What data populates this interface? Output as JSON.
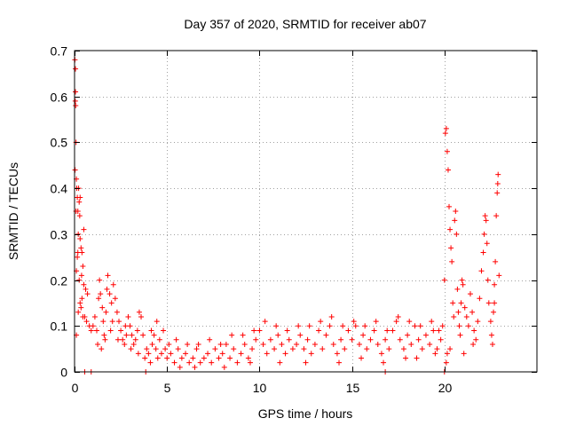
{
  "chart_data": {
    "type": "scatter",
    "title": "Day 357 of 2020, SRMTID for receiver ab07",
    "xlabel": "GPS time / hours",
    "ylabel": "SRMTID / TECUs",
    "xlim": [
      0,
      25
    ],
    "ylim": [
      0,
      0.7
    ],
    "xticks": [
      0,
      5,
      10,
      15,
      20
    ],
    "yticks": [
      0,
      0.1,
      0.2,
      0.3,
      0.4,
      0.5,
      0.6,
      0.7
    ],
    "xtick_labels": [
      "0",
      "5",
      "10",
      "15",
      "20"
    ],
    "ytick_labels": [
      "0",
      "0.1",
      "0.2",
      "0.3",
      "0.4",
      "0.5",
      "0.6",
      "0.7"
    ],
    "grid": true,
    "marker": "+",
    "color": "#ff0000",
    "series": [
      {
        "name": "SRMTID",
        "points": [
          [
            0.02,
            0.68
          ],
          [
            0.05,
            0.66
          ],
          [
            0.05,
            0.61
          ],
          [
            0.04,
            0.59
          ],
          [
            0.06,
            0.58
          ],
          [
            0.08,
            0.5
          ],
          [
            0.03,
            0.44
          ],
          [
            0.1,
            0.42
          ],
          [
            0.12,
            0.4
          ],
          [
            0.15,
            0.38
          ],
          [
            0.18,
            0.35
          ],
          [
            0.22,
            0.4
          ],
          [
            0.25,
            0.37
          ],
          [
            0.28,
            0.34
          ],
          [
            0.2,
            0.3
          ],
          [
            0.3,
            0.29
          ],
          [
            0.35,
            0.27
          ],
          [
            0.4,
            0.26
          ],
          [
            0.15,
            0.25
          ],
          [
            0.45,
            0.23
          ],
          [
            0.1,
            0.22
          ],
          [
            0.25,
            0.2
          ],
          [
            0.5,
            0.19
          ],
          [
            0.6,
            0.18
          ],
          [
            0.7,
            0.17
          ],
          [
            0.4,
            0.16
          ],
          [
            0.3,
            0.15
          ],
          [
            0.2,
            0.13
          ],
          [
            0.55,
            0.12
          ],
          [
            0.65,
            0.11
          ],
          [
            0.8,
            0.1
          ],
          [
            0.9,
            0.09
          ],
          [
            0.1,
            0.08
          ],
          [
            0.35,
            0.14
          ],
          [
            0.45,
            0.12
          ],
          [
            0.5,
            0.31
          ],
          [
            0.3,
            0.38
          ],
          [
            0.18,
            0.26
          ],
          [
            0.38,
            0.21
          ],
          [
            0.08,
            0.35
          ],
          [
            1.0,
            0.1
          ],
          [
            1.1,
            0.12
          ],
          [
            1.2,
            0.09
          ],
          [
            1.3,
            0.16
          ],
          [
            1.35,
            0.2
          ],
          [
            1.4,
            0.17
          ],
          [
            1.5,
            0.14
          ],
          [
            1.55,
            0.11
          ],
          [
            1.6,
            0.08
          ],
          [
            1.7,
            0.13
          ],
          [
            1.75,
            0.18
          ],
          [
            1.8,
            0.21
          ],
          [
            1.9,
            0.17
          ],
          [
            2.0,
            0.15
          ],
          [
            2.1,
            0.19
          ],
          [
            2.2,
            0.16
          ],
          [
            2.3,
            0.13
          ],
          [
            2.4,
            0.11
          ],
          [
            2.5,
            0.09
          ],
          [
            2.6,
            0.07
          ],
          [
            2.7,
            0.06
          ],
          [
            2.8,
            0.08
          ],
          [
            2.9,
            0.12
          ],
          [
            3.0,
            0.1
          ],
          [
            3.1,
            0.08
          ],
          [
            3.2,
            0.06
          ],
          [
            3.3,
            0.07
          ],
          [
            3.4,
            0.09
          ],
          [
            3.5,
            0.13
          ],
          [
            3.6,
            0.12
          ],
          [
            3.7,
            0.08
          ],
          [
            1.25,
            0.06
          ],
          [
            1.45,
            0.05
          ],
          [
            1.65,
            0.07
          ],
          [
            2.05,
            0.11
          ],
          [
            2.35,
            0.07
          ],
          [
            2.75,
            0.1
          ],
          [
            3.05,
            0.05
          ],
          [
            3.45,
            0.04
          ],
          [
            1.95,
            0.09
          ],
          [
            3.8,
            0.03
          ],
          [
            3.9,
            0.05
          ],
          [
            4.0,
            0.04
          ],
          [
            4.1,
            0.02
          ],
          [
            4.2,
            0.06
          ],
          [
            4.3,
            0.08
          ],
          [
            4.4,
            0.05
          ],
          [
            4.5,
            0.03
          ],
          [
            4.6,
            0.07
          ],
          [
            4.7,
            0.04
          ],
          [
            4.8,
            0.09
          ],
          [
            4.9,
            0.05
          ],
          [
            5.0,
            0.03
          ],
          [
            5.2,
            0.04
          ],
          [
            5.4,
            0.02
          ],
          [
            5.6,
            0.05
          ],
          [
            5.8,
            0.03
          ],
          [
            6.0,
            0.04
          ],
          [
            6.2,
            0.02
          ],
          [
            6.4,
            0.03
          ],
          [
            6.6,
            0.05
          ],
          [
            6.8,
            0.02
          ],
          [
            7.0,
            0.03
          ],
          [
            7.2,
            0.04
          ],
          [
            7.4,
            0.02
          ],
          [
            7.6,
            0.05
          ],
          [
            7.8,
            0.03
          ],
          [
            8.0,
            0.04
          ],
          [
            8.2,
            0.06
          ],
          [
            8.4,
            0.03
          ],
          [
            8.6,
            0.05
          ],
          [
            8.8,
            0.02
          ],
          [
            9.0,
            0.04
          ],
          [
            9.2,
            0.06
          ],
          [
            9.4,
            0.03
          ],
          [
            9.6,
            0.05
          ],
          [
            9.8,
            0.07
          ],
          [
            10.0,
            0.09
          ],
          [
            10.2,
            0.06
          ],
          [
            10.4,
            0.04
          ],
          [
            10.6,
            0.07
          ],
          [
            10.8,
            0.05
          ],
          [
            11.0,
            0.08
          ],
          [
            11.2,
            0.06
          ],
          [
            11.4,
            0.04
          ],
          [
            11.6,
            0.07
          ],
          [
            11.8,
            0.05
          ],
          [
            12.0,
            0.06
          ],
          [
            12.2,
            0.08
          ],
          [
            12.4,
            0.05
          ],
          [
            12.6,
            0.07
          ],
          [
            12.8,
            0.04
          ],
          [
            13.0,
            0.06
          ],
          [
            13.2,
            0.09
          ],
          [
            13.4,
            0.05
          ],
          [
            13.6,
            0.08
          ],
          [
            13.8,
            0.1
          ],
          [
            14.0,
            0.06
          ],
          [
            14.2,
            0.04
          ],
          [
            14.4,
            0.07
          ],
          [
            14.6,
            0.05
          ],
          [
            14.8,
            0.09
          ],
          [
            15.0,
            0.07
          ],
          [
            15.2,
            0.1
          ],
          [
            15.4,
            0.06
          ],
          [
            15.6,
            0.08
          ],
          [
            15.8,
            0.05
          ],
          [
            16.0,
            0.07
          ],
          [
            16.2,
            0.09
          ],
          [
            16.4,
            0.06
          ],
          [
            16.6,
            0.04
          ],
          [
            16.8,
            0.07
          ],
          [
            17.0,
            0.05
          ],
          [
            17.2,
            0.09
          ],
          [
            17.4,
            0.11
          ],
          [
            17.6,
            0.07
          ],
          [
            17.8,
            0.05
          ],
          [
            18.0,
            0.08
          ],
          [
            18.2,
            0.06
          ],
          [
            18.4,
            0.1
          ],
          [
            18.6,
            0.07
          ],
          [
            18.8,
            0.05
          ],
          [
            19.0,
            0.08
          ],
          [
            19.2,
            0.06
          ],
          [
            19.4,
            0.09
          ],
          [
            19.6,
            0.05
          ],
          [
            19.8,
            0.07
          ],
          [
            19.9,
            0.1
          ],
          [
            4.15,
            0.09
          ],
          [
            4.45,
            0.11
          ],
          [
            5.1,
            0.06
          ],
          [
            5.5,
            0.07
          ],
          [
            6.1,
            0.06
          ],
          [
            6.7,
            0.06
          ],
          [
            7.3,
            0.07
          ],
          [
            7.9,
            0.06
          ],
          [
            8.5,
            0.08
          ],
          [
            9.1,
            0.08
          ],
          [
            9.7,
            0.09
          ],
          [
            10.3,
            0.11
          ],
          [
            10.9,
            0.1
          ],
          [
            11.5,
            0.09
          ],
          [
            12.1,
            0.1
          ],
          [
            12.7,
            0.1
          ],
          [
            13.3,
            0.11
          ],
          [
            13.9,
            0.12
          ],
          [
            14.5,
            0.1
          ],
          [
            15.1,
            0.11
          ],
          [
            15.7,
            0.1
          ],
          [
            16.3,
            0.11
          ],
          [
            16.9,
            0.09
          ],
          [
            17.5,
            0.12
          ],
          [
            18.1,
            0.11
          ],
          [
            18.7,
            0.1
          ],
          [
            19.3,
            0.11
          ],
          [
            19.7,
            0.09
          ],
          [
            6.5,
            0.01
          ],
          [
            9.5,
            0.02
          ],
          [
            12.5,
            0.02
          ],
          [
            15.5,
            0.03
          ],
          [
            18.5,
            0.03
          ],
          [
            14.3,
            0.02
          ],
          [
            11.1,
            0.02
          ],
          [
            8.1,
            0.01
          ],
          [
            5.7,
            0.01
          ],
          [
            16.7,
            0.02
          ],
          [
            17.9,
            0.03
          ],
          [
            19.5,
            0.04
          ],
          [
            20.0,
            0.2
          ],
          [
            20.05,
            0.52
          ],
          [
            20.1,
            0.53
          ],
          [
            20.15,
            0.48
          ],
          [
            20.2,
            0.44
          ],
          [
            20.25,
            0.36
          ],
          [
            20.3,
            0.31
          ],
          [
            20.35,
            0.27
          ],
          [
            20.4,
            0.24
          ],
          [
            20.45,
            0.15
          ],
          [
            20.5,
            0.12
          ],
          [
            20.55,
            0.33
          ],
          [
            20.6,
            0.35
          ],
          [
            20.65,
            0.3
          ],
          [
            20.7,
            0.18
          ],
          [
            20.75,
            0.13
          ],
          [
            20.8,
            0.1
          ],
          [
            20.85,
            0.08
          ],
          [
            20.9,
            0.15
          ],
          [
            20.95,
            0.2
          ],
          [
            21.0,
            0.19
          ],
          [
            21.1,
            0.14
          ],
          [
            21.2,
            0.12
          ],
          [
            21.3,
            0.1
          ],
          [
            21.4,
            0.17
          ],
          [
            21.5,
            0.13
          ],
          [
            21.6,
            0.09
          ],
          [
            21.7,
            0.07
          ],
          [
            21.8,
            0.11
          ],
          [
            21.9,
            0.16
          ],
          [
            22.0,
            0.22
          ],
          [
            22.1,
            0.26
          ],
          [
            22.15,
            0.3
          ],
          [
            22.2,
            0.34
          ],
          [
            22.25,
            0.33
          ],
          [
            22.3,
            0.28
          ],
          [
            22.35,
            0.2
          ],
          [
            22.4,
            0.15
          ],
          [
            22.5,
            0.11
          ],
          [
            22.55,
            0.08
          ],
          [
            22.6,
            0.06
          ],
          [
            22.65,
            0.13
          ],
          [
            22.7,
            0.19
          ],
          [
            22.75,
            0.24
          ],
          [
            22.8,
            0.34
          ],
          [
            22.85,
            0.39
          ],
          [
            22.88,
            0.41
          ],
          [
            22.9,
            0.43
          ],
          [
            22.95,
            0.21
          ],
          [
            22.7,
            0.15
          ],
          [
            20.15,
            0.04
          ],
          [
            20.3,
            0.05
          ],
          [
            21.05,
            0.04
          ],
          [
            21.55,
            0.06
          ],
          [
            20.1,
            0.02
          ],
          [
            20.0,
            0.0
          ],
          [
            0.55,
            0.0
          ],
          [
            0.9,
            0.0
          ],
          [
            3.85,
            0.0
          ],
          [
            16.8,
            0.0
          ]
        ]
      }
    ]
  }
}
